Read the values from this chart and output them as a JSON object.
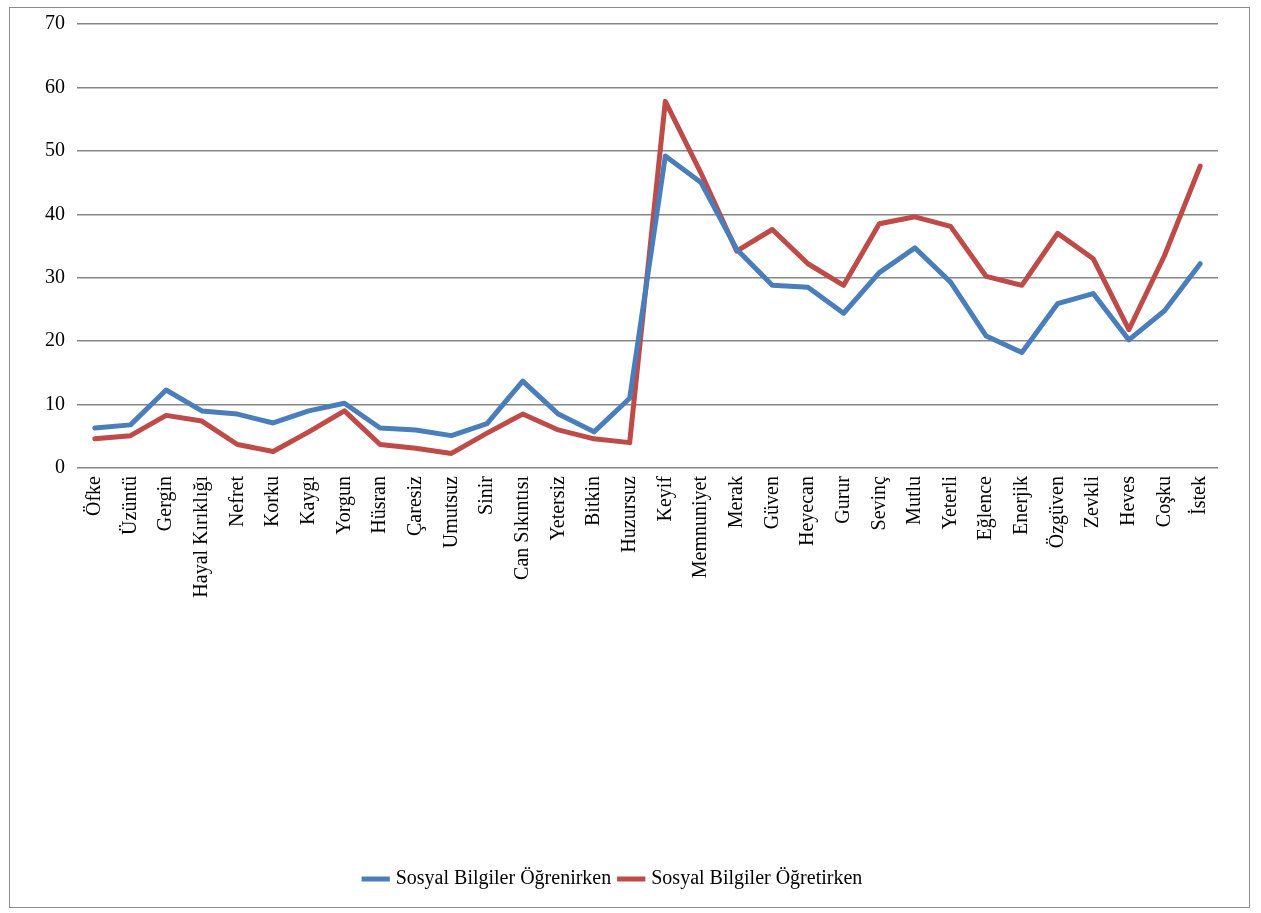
{
  "chart_data": {
    "type": "line",
    "categories": [
      "Öfke",
      "Üzüntü",
      "Gergin",
      "Hayal Kırıklığı",
      "Nefret",
      "Korku",
      "Kaygı",
      "Yorgun",
      "Hüsran",
      "Çaresiz",
      "Umutsuz",
      "Sinir",
      "Can Sıkıntısı",
      "Yetersiz",
      "Bitkin",
      "Huzursuz",
      "Keyif",
      "Memnuniyet",
      "Merak",
      "Güven",
      "Heyecan",
      "Gurur",
      "Sevinç",
      "Mutlu",
      "Yeterli",
      "Eğlence",
      "Enerjik",
      "Özgüven",
      "Zevkli",
      "Heves",
      "Coşku",
      "İstek"
    ],
    "series": [
      {
        "name": "Sosyal Bilgiler Öğrenirken",
        "color": "#4a7ebb",
        "values": [
          6.3,
          6.8,
          12.3,
          9.0,
          8.5,
          7.1,
          9.0,
          10.2,
          6.3,
          6.0,
          5.1,
          7.0,
          13.7,
          8.5,
          5.7,
          11.0,
          49.2,
          45.0,
          34.5,
          28.8,
          28.5,
          24.4,
          30.8,
          34.7,
          29.3,
          20.8,
          18.2,
          25.9,
          27.5,
          20.2,
          24.8,
          32.2
        ]
      },
      {
        "name": "Sosyal Bilgiler Öğretirken",
        "color": "#be4b48",
        "values": [
          4.6,
          5.1,
          8.3,
          7.4,
          3.7,
          2.6,
          5.7,
          9.0,
          3.7,
          3.1,
          2.3,
          5.5,
          8.5,
          6.0,
          4.6,
          4.0,
          57.8,
          46.5,
          34.2,
          37.6,
          32.2,
          28.8,
          38.5,
          39.6,
          38.1,
          30.2,
          28.8,
          37.0,
          33.0,
          21.8,
          33.5,
          47.6
        ]
      }
    ],
    "ylim": [
      0,
      70
    ],
    "yticks": [
      0,
      10,
      20,
      30,
      40,
      50,
      60,
      70
    ],
    "grid": "y",
    "legend": "bottom",
    "marker": "none",
    "line_style": "solid"
  }
}
